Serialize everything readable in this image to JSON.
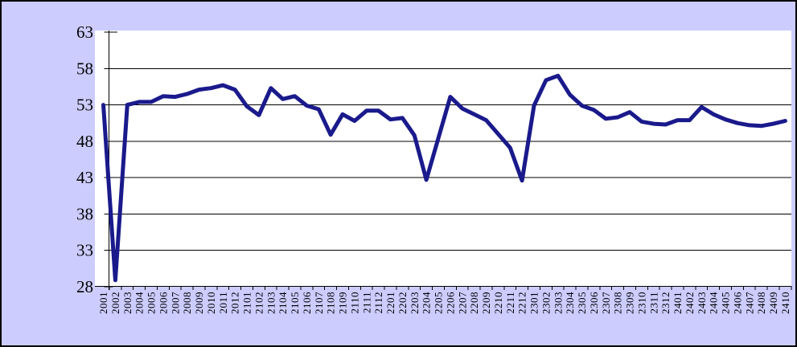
{
  "chart_data": {
    "type": "line",
    "title": "",
    "xlabel": "",
    "ylabel": "",
    "categories": [
      "2001",
      "2002",
      "2003",
      "2004",
      "2005",
      "2006",
      "2007",
      "2008",
      "2009",
      "2010",
      "2011",
      "2012",
      "2101",
      "2102",
      "2103",
      "2104",
      "2105",
      "2106",
      "2107",
      "2108",
      "2109",
      "2110",
      "2111",
      "2112",
      "2201",
      "2202",
      "2203",
      "2204",
      "2205",
      "2206",
      "2207",
      "2208",
      "2209",
      "2210",
      "2211",
      "2212",
      "2301",
      "2302",
      "2303",
      "2304",
      "2305",
      "2306",
      "2307",
      "2308",
      "2309",
      "2310",
      "2311",
      "2312",
      "2401",
      "2402",
      "2403",
      "2404",
      "2405",
      "2406",
      "2407",
      "2408",
      "2409",
      "2410"
    ],
    "values": [
      53.0,
      28.9,
      53.0,
      53.4,
      53.4,
      54.2,
      54.1,
      54.5,
      55.1,
      55.3,
      55.7,
      55.1,
      52.8,
      51.6,
      55.3,
      53.8,
      54.2,
      52.9,
      52.4,
      48.9,
      51.7,
      50.8,
      52.2,
      52.2,
      51.0,
      51.2,
      48.8,
      42.7,
      48.4,
      54.1,
      52.5,
      51.7,
      50.9,
      49.0,
      47.1,
      42.6,
      52.9,
      56.4,
      57.0,
      54.4,
      52.9,
      52.3,
      51.1,
      51.3,
      52.0,
      50.7,
      50.4,
      50.3,
      50.9,
      50.9,
      52.7,
      51.7,
      51.0,
      50.5,
      50.2,
      50.1,
      50.4,
      50.8
    ],
    "ylim": [
      28,
      63
    ],
    "yticks": [
      28,
      33,
      38,
      43,
      48,
      53,
      58,
      63
    ],
    "grid": true,
    "legend": false,
    "colors": {
      "line": "#1A1A8C",
      "background": "#CCCCFF",
      "plot_background": "#FFFFFF",
      "grid": "#000000",
      "axis": "#000000",
      "text": "#000000",
      "border": "#000000"
    }
  }
}
